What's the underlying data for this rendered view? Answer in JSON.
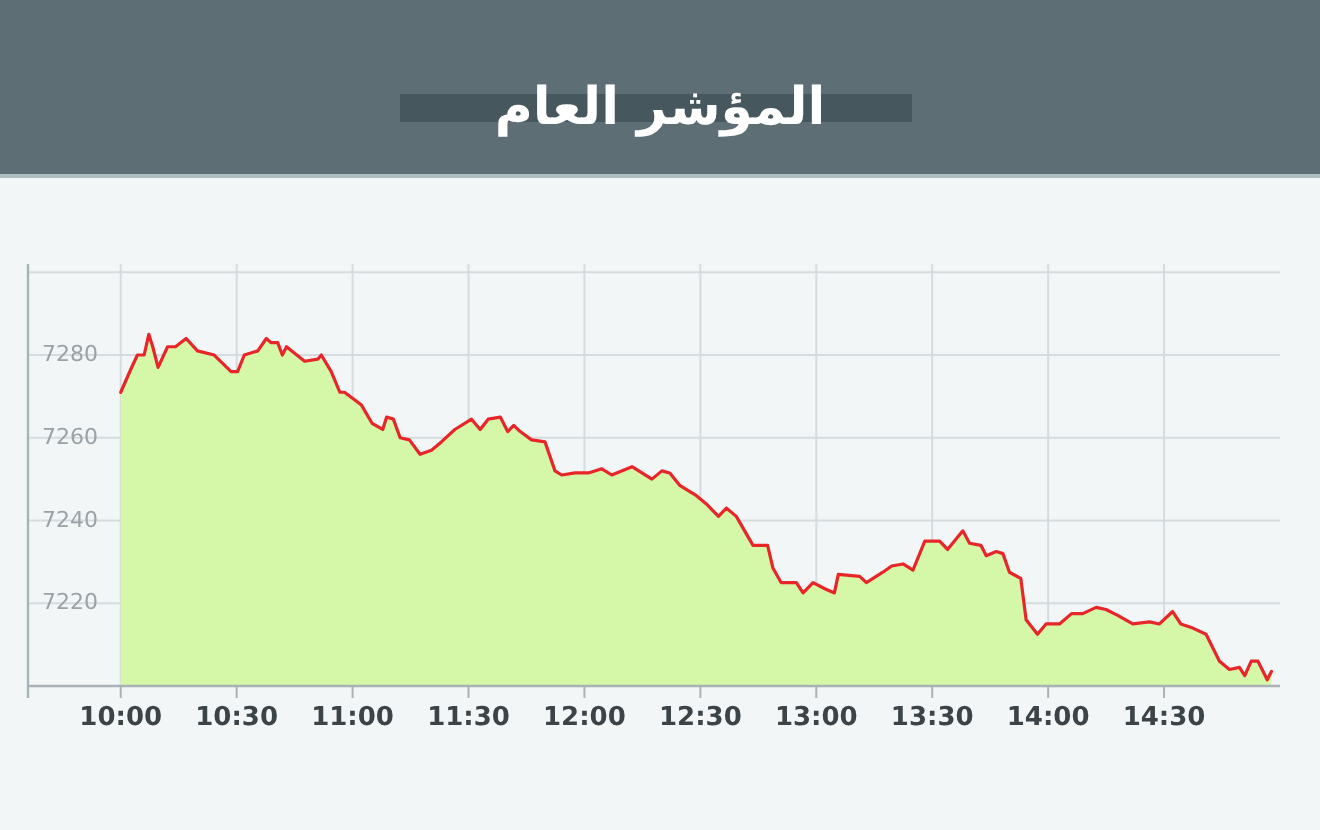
{
  "chart_data": {
    "type": "area",
    "title": "المؤشر العام",
    "grid": true,
    "series": [
      {
        "color": "#d4f7a8",
        "values": [
          7271,
          7276.5,
          7280,
          7280,
          7285,
          7282,
          7277,
          7282,
          7282,
          7284,
          7281,
          7280,
          7276,
          7276,
          7280,
          7281,
          7284,
          7283,
          7283,
          7280,
          7282,
          7278.5,
          7279,
          7280,
          7276,
          7271,
          7271,
          7268,
          7263.5,
          7262,
          7265,
          7264.5,
          7260,
          7259.5,
          7256,
          7257,
          7259,
          7262,
          7264.5,
          7262,
          7264.5,
          7265,
          7261.5,
          7263,
          7261.5,
          7259.5,
          7259,
          7252,
          7251,
          7251.5,
          7251.5,
          7252.5,
          7251,
          7253,
          7250,
          7252,
          7251.5,
          7248.5,
          7246,
          7244,
          7241,
          7243,
          7241,
          7234,
          7234,
          7228.5,
          7225,
          7225,
          7222.5,
          7225,
          7223.5,
          7222.5,
          7227,
          7226.5,
          7225,
          7227.5,
          7229,
          7229.5,
          7228,
          7235,
          7235,
          7233,
          7237.5,
          7234.5,
          7234,
          7231.5,
          7232.5,
          7232,
          7227.5,
          7226,
          7216,
          7212.5,
          7215,
          7215,
          7217.5,
          7217.5,
          7219,
          7218.5,
          7217,
          7215,
          7215.5,
          7215,
          7218,
          7215,
          7214,
          7212.5,
          7206,
          7204,
          7204.5,
          7202.5,
          7206,
          7206,
          7201.5,
          7203.5
        ]
      },
      {
        "type": "line",
        "color": "#e8262a",
        "values": [
          7271,
          7276.5,
          7280,
          7280,
          7285,
          7282,
          7277,
          7282,
          7282,
          7284,
          7281,
          7280,
          7276,
          7276,
          7280,
          7281,
          7284,
          7283,
          7283,
          7280,
          7282,
          7278.5,
          7279,
          7280,
          7276,
          7271,
          7271,
          7268,
          7263.5,
          7262,
          7265,
          7264.5,
          7260,
          7259.5,
          7256,
          7257,
          7259,
          7262,
          7264.5,
          7262,
          7264.5,
          7265,
          7261.5,
          7263,
          7261.5,
          7259.5,
          7259,
          7252,
          7251,
          7251.5,
          7251.5,
          7252.5,
          7251,
          7253,
          7250,
          7252,
          7251.5,
          7248.5,
          7246,
          7244,
          7241,
          7243,
          7241,
          7234,
          7234,
          7228.5,
          7225,
          7225,
          7222.5,
          7225,
          7223.5,
          7222.5,
          7227,
          7226.5,
          7225,
          7227.5,
          7229,
          7229.5,
          7228,
          7235,
          7235,
          7233,
          7237.5,
          7234.5,
          7234,
          7231.5,
          7232.5,
          7232,
          7227.5,
          7226,
          7216,
          7212.5,
          7215,
          7215,
          7217.5,
          7217.5,
          7219,
          7218.5,
          7217,
          7215,
          7215.5,
          7215,
          7218,
          7215,
          7214,
          7212.5,
          7206,
          7204,
          7204.5,
          7202.5,
          7206,
          7206,
          7201.5,
          7203.5
        ]
      }
    ],
    "xlim": [
      9.6,
      15
    ],
    "xticks": [
      {
        "value": 10,
        "label": "10:00"
      },
      {
        "value": 10.5,
        "label": "10:30"
      },
      {
        "value": 11,
        "label": "11:00"
      },
      {
        "value": 11.5,
        "label": "11:30"
      },
      {
        "value": 12,
        "label": "12:00"
      },
      {
        "value": 12.5,
        "label": "12:30"
      },
      {
        "value": 13,
        "label": "13:00"
      },
      {
        "value": 13.5,
        "label": "13:30"
      },
      {
        "value": 14,
        "label": "14:00"
      },
      {
        "value": 14.5,
        "label": "14:30"
      }
    ],
    "ylim": [
      7200,
      7302
    ],
    "yticks": [
      {
        "value": 7200,
        "label": null
      },
      7220,
      7240,
      7260,
      7280,
      {
        "value": 7300,
        "label": null
      }
    ],
    "x": [
      10.0,
      10.043,
      10.072,
      10.101,
      10.121,
      10.138,
      10.161,
      10.202,
      10.236,
      10.282,
      10.331,
      10.403,
      10.476,
      10.504,
      10.533,
      10.591,
      10.628,
      10.648,
      10.677,
      10.697,
      10.715,
      10.793,
      10.85,
      10.865,
      10.908,
      10.945,
      10.965,
      11.037,
      11.084,
      11.13,
      11.147,
      11.176,
      11.205,
      11.245,
      11.291,
      11.34,
      11.383,
      11.441,
      11.513,
      11.55,
      11.585,
      11.637,
      11.669,
      11.695,
      11.723,
      11.772,
      11.83,
      11.873,
      11.902,
      11.96,
      12.017,
      12.075,
      12.118,
      12.205,
      12.291,
      12.334,
      12.368,
      12.411,
      12.483,
      12.526,
      12.578,
      12.612,
      12.655,
      12.727,
      12.79,
      12.813,
      12.848,
      12.914,
      12.943,
      12.986,
      13.037,
      13.078,
      13.095,
      13.187,
      13.216,
      13.287,
      13.325,
      13.374,
      13.417,
      13.468,
      13.532,
      13.566,
      13.632,
      13.661,
      13.71,
      13.733,
      13.776,
      13.805,
      13.833,
      13.882,
      13.905,
      13.954,
      13.991,
      14.049,
      14.101,
      14.149,
      14.207,
      14.25,
      14.302,
      14.365,
      14.437,
      14.48,
      14.537,
      14.572,
      14.624,
      14.681,
      14.739,
      14.782,
      14.825,
      14.848,
      14.876,
      14.905,
      14.945,
      14.963
    ]
  }
}
